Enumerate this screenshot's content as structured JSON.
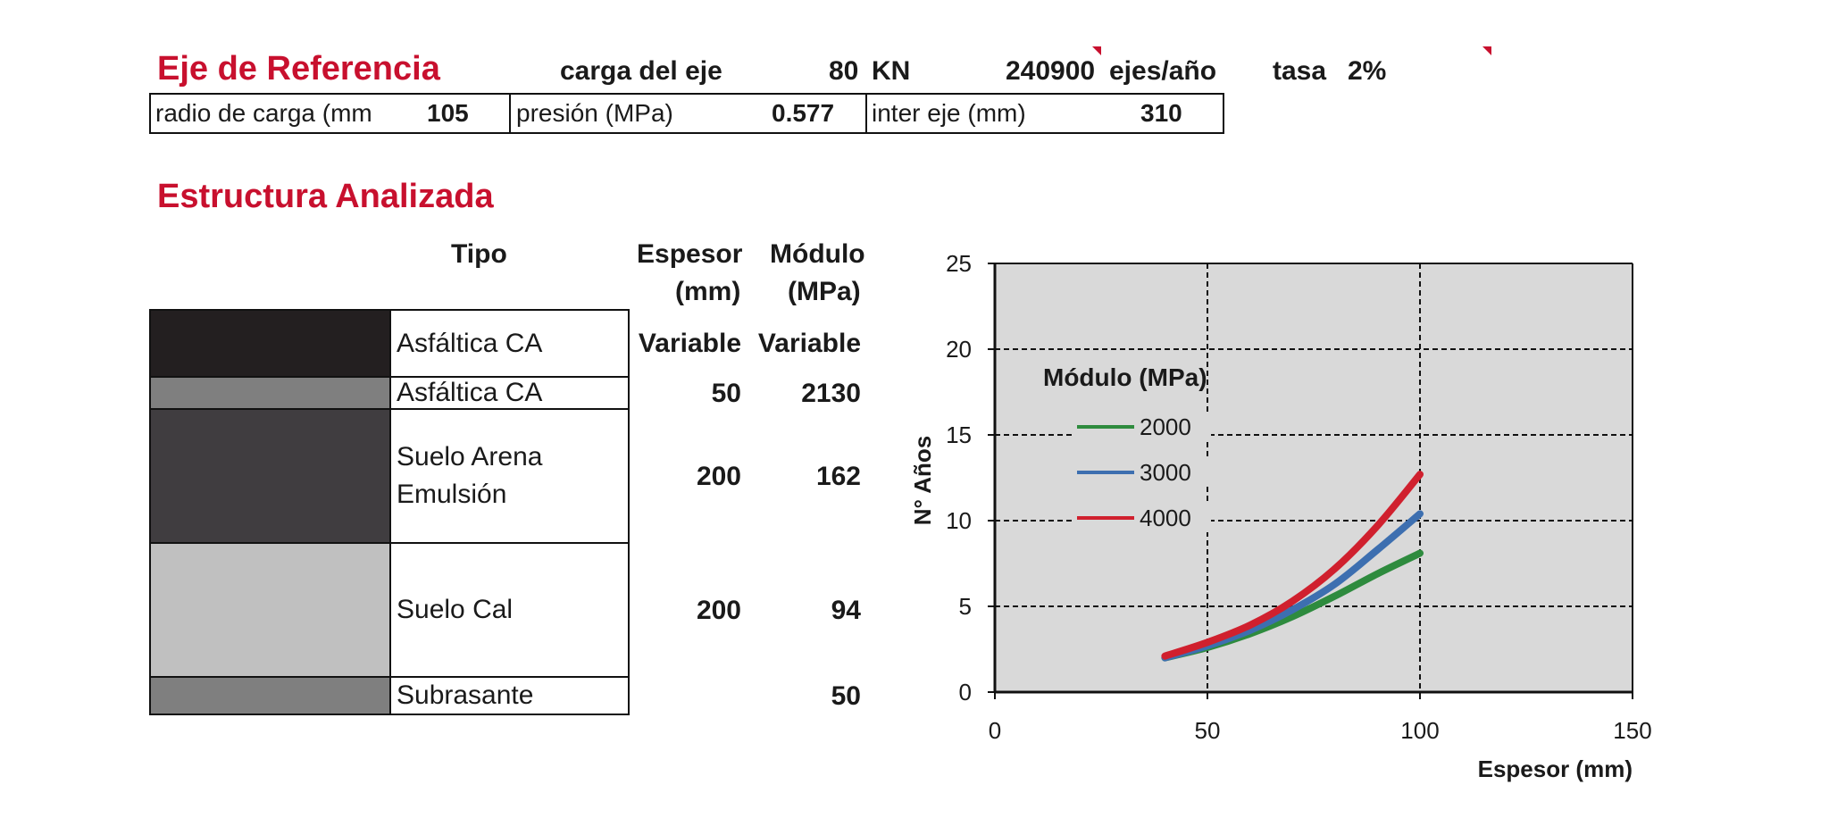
{
  "reference": {
    "title": "Eje de Referencia",
    "axle_load_label": "carga del eje",
    "axle_load_value": "80",
    "axle_load_unit": "KN",
    "axles_per_year_value": "240900",
    "axles_per_year_unit": "ejes/año",
    "rate_label": "tasa",
    "rate_value": "2%",
    "load_radius_label": "radio de carga (mm",
    "load_radius_value": "105",
    "pressure_label": "presión (MPa)",
    "pressure_value": "0.577",
    "axle_spacing_label": "inter eje (mm)",
    "axle_spacing_value": "310"
  },
  "structure": {
    "title": "Estructura Analizada",
    "headers": {
      "type": "Tipo",
      "thickness_line1": "Espesor",
      "thickness_line2": "(mm)",
      "modulus_line1": "Módulo",
      "modulus_line2": "(MPa)"
    },
    "layers": [
      {
        "type": "Asfáltica CA",
        "thickness": "Variable",
        "modulus": "Variable",
        "color": "#231f20"
      },
      {
        "type": "Asfáltica CA",
        "thickness": "50",
        "modulus": "2130",
        "color": "#7f7f7f"
      },
      {
        "type_line1": "Suelo Arena",
        "type_line2": "Emulsión",
        "thickness": "200",
        "modulus": "162",
        "color": "#403d40"
      },
      {
        "type": "Suelo Cal",
        "thickness": "200",
        "modulus": "94",
        "color": "#c0c0c0"
      },
      {
        "type": "Subrasante",
        "thickness": "",
        "modulus": "50",
        "color": "#7f7f7f"
      }
    ]
  },
  "chart_data": {
    "type": "line",
    "xlabel": "Espesor (mm)",
    "ylabel": "N° Años",
    "xlim": [
      0,
      150
    ],
    "ylim": [
      0,
      25
    ],
    "xticks": [
      0,
      50,
      100,
      150
    ],
    "yticks": [
      0,
      5,
      10,
      15,
      20,
      25
    ],
    "grid": true,
    "legend_title": "Módulo (MPa)",
    "legend_position": "upper-left",
    "plot_background": "#d9d9d9",
    "x": [
      40,
      50,
      60,
      70,
      80,
      90,
      100
    ],
    "series": [
      {
        "name": "2000",
        "color": "#2e8b3e",
        "values": [
          2.0,
          2.6,
          3.4,
          4.4,
          5.6,
          6.9,
          8.1
        ]
      },
      {
        "name": "3000",
        "color": "#3d6fb0",
        "values": [
          2.0,
          2.7,
          3.6,
          4.8,
          6.3,
          8.3,
          10.4
        ]
      },
      {
        "name": "4000",
        "color": "#d0202e",
        "values": [
          2.1,
          2.9,
          3.9,
          5.3,
          7.2,
          9.7,
          12.7
        ]
      }
    ]
  }
}
